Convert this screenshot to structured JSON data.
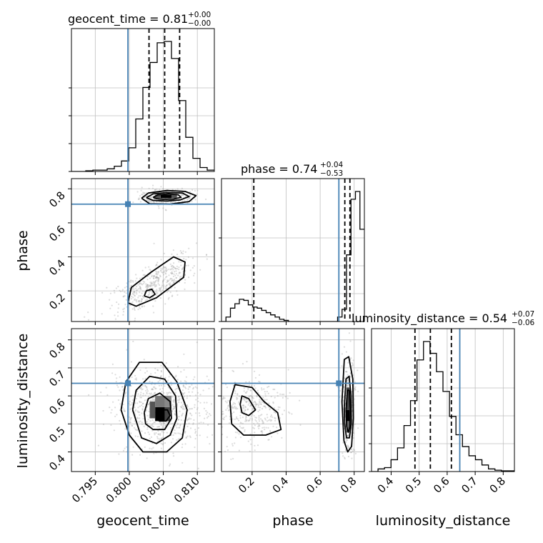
{
  "chart_data": {
    "type": "corner",
    "parameters": [
      "geocent_time",
      "phase",
      "luminosity_distance"
    ],
    "axis_labels": [
      "geocent_time",
      "phase",
      "luminosity_distance"
    ],
    "ranges": [
      [
        0.7915,
        0.8125
      ],
      [
        0.02,
        0.86
      ],
      [
        0.33,
        0.84
      ]
    ],
    "ticks": [
      {
        "values": [
          0.795,
          0.8,
          0.805,
          0.81
        ],
        "labels": [
          "0.795",
          "0.800",
          "0.805",
          "0.810"
        ]
      },
      {
        "values": [
          0.2,
          0.4,
          0.6,
          0.8
        ],
        "labels": [
          "0.2",
          "0.4",
          "0.6",
          "0.8"
        ]
      },
      {
        "values": [
          0.4,
          0.5,
          0.6,
          0.7,
          0.8
        ],
        "labels": [
          "0.4",
          "0.5",
          "0.6",
          "0.7",
          "0.8"
        ]
      }
    ],
    "truths": [
      0.7998,
      0.71,
      0.645
    ],
    "grid": true,
    "titles": [
      {
        "label": "geocent_time = 0.81",
        "plus": "+0.00",
        "minus": "−0.00"
      },
      {
        "label": "phase = 0.74",
        "plus": "+0.04",
        "minus": "−0.53"
      },
      {
        "label": "luminosity_distance = 0.54",
        "plus": "+0.07",
        "minus": "−0.06"
      }
    ],
    "quantiles": [
      [
        0.8029,
        0.8052,
        0.8074
      ],
      [
        0.21,
        0.745,
        0.775
      ],
      [
        0.485,
        0.54,
        0.615
      ]
    ],
    "histograms": [
      {
        "edges_range": [
          0.7915,
          0.8125
        ],
        "counts": [
          0,
          0,
          0.5,
          1,
          1,
          2,
          4,
          8,
          18,
          40,
          64,
          83,
          98,
          99,
          86,
          54,
          26,
          10,
          3,
          1
        ]
      },
      {
        "edges_range": [
          0.02,
          0.86
        ],
        "counts": [
          0,
          4,
          12,
          16,
          20,
          19,
          15,
          13,
          12,
          10,
          8,
          6,
          4,
          2,
          1,
          0,
          0,
          0,
          0,
          0,
          0,
          0,
          0,
          0,
          0,
          0,
          4,
          11,
          60,
          110,
          117,
          83
        ]
      },
      {
        "edges_range": [
          0.33,
          0.84
        ],
        "counts": [
          0,
          2,
          3,
          9,
          18,
          35,
          54,
          85,
          99,
          90,
          76,
          61,
          42,
          28,
          19,
          12,
          9,
          5,
          2,
          1,
          0.5,
          0.5
        ]
      }
    ],
    "contours": {
      "phase_vs_geocent_time": [
        [
          [
            0.8018,
            0.745
          ],
          [
            0.8028,
            0.775
          ],
          [
            0.8055,
            0.79
          ],
          [
            0.8082,
            0.785
          ],
          [
            0.8098,
            0.76
          ],
          [
            0.8088,
            0.725
          ],
          [
            0.806,
            0.71
          ],
          [
            0.803,
            0.712
          ],
          [
            0.8018,
            0.745
          ]
        ],
        [
          [
            0.8025,
            0.748
          ],
          [
            0.8035,
            0.77
          ],
          [
            0.8055,
            0.778
          ],
          [
            0.8078,
            0.775
          ],
          [
            0.8088,
            0.755
          ],
          [
            0.8075,
            0.735
          ],
          [
            0.8055,
            0.728
          ],
          [
            0.8035,
            0.732
          ],
          [
            0.8025,
            0.748
          ]
        ],
        [
          [
            0.8035,
            0.75
          ],
          [
            0.8042,
            0.765
          ],
          [
            0.8058,
            0.77
          ],
          [
            0.8072,
            0.765
          ],
          [
            0.8076,
            0.75
          ],
          [
            0.8065,
            0.74
          ],
          [
            0.805,
            0.738
          ],
          [
            0.804,
            0.742
          ],
          [
            0.8035,
            0.75
          ]
        ],
        [
          [
            0.7998,
            0.13
          ],
          [
            0.8003,
            0.22
          ],
          [
            0.8032,
            0.31
          ],
          [
            0.8065,
            0.4
          ],
          [
            0.8082,
            0.37
          ],
          [
            0.808,
            0.28
          ],
          [
            0.806,
            0.22
          ],
          [
            0.804,
            0.16
          ],
          [
            0.801,
            0.11
          ],
          [
            0.7998,
            0.13
          ]
        ],
        [
          [
            0.8022,
            0.17
          ],
          [
            0.8025,
            0.2
          ],
          [
            0.8033,
            0.21
          ],
          [
            0.8038,
            0.18
          ],
          [
            0.803,
            0.16
          ],
          [
            0.8022,
            0.17
          ]
        ]
      ],
      "luminosity_distance_vs_geocent_time": [
        [
          [
            0.7988,
            0.55
          ],
          [
            0.7995,
            0.65
          ],
          [
            0.8015,
            0.72
          ],
          [
            0.8048,
            0.72
          ],
          [
            0.807,
            0.65
          ],
          [
            0.8085,
            0.55
          ],
          [
            0.8078,
            0.45
          ],
          [
            0.8055,
            0.4
          ],
          [
            0.802,
            0.4
          ],
          [
            0.8,
            0.46
          ],
          [
            0.7988,
            0.55
          ]
        ],
        [
          [
            0.8005,
            0.55
          ],
          [
            0.801,
            0.62
          ],
          [
            0.803,
            0.67
          ],
          [
            0.8052,
            0.66
          ],
          [
            0.8068,
            0.6
          ],
          [
            0.807,
            0.52
          ],
          [
            0.806,
            0.46
          ],
          [
            0.804,
            0.43
          ],
          [
            0.8018,
            0.45
          ],
          [
            0.8005,
            0.55
          ]
        ],
        [
          [
            0.8022,
            0.54
          ],
          [
            0.8028,
            0.59
          ],
          [
            0.8045,
            0.61
          ],
          [
            0.806,
            0.58
          ],
          [
            0.8062,
            0.52
          ],
          [
            0.8052,
            0.48
          ],
          [
            0.8035,
            0.48
          ],
          [
            0.8024,
            0.5
          ],
          [
            0.8022,
            0.54
          ]
        ],
        [
          [
            0.804,
            0.53
          ],
          [
            0.8045,
            0.55
          ],
          [
            0.8056,
            0.55
          ],
          [
            0.806,
            0.53
          ],
          [
            0.8054,
            0.51
          ],
          [
            0.8044,
            0.51
          ],
          [
            0.804,
            0.53
          ]
        ]
      ],
      "luminosity_distance_vs_phase": [
        [
          [
            0.07,
            0.58
          ],
          [
            0.1,
            0.64
          ],
          [
            0.2,
            0.63
          ],
          [
            0.27,
            0.58
          ],
          [
            0.35,
            0.54
          ],
          [
            0.37,
            0.48
          ],
          [
            0.28,
            0.46
          ],
          [
            0.15,
            0.46
          ],
          [
            0.08,
            0.5
          ],
          [
            0.07,
            0.58
          ]
        ],
        [
          [
            0.13,
            0.57
          ],
          [
            0.14,
            0.6
          ],
          [
            0.18,
            0.59
          ],
          [
            0.22,
            0.55
          ],
          [
            0.18,
            0.53
          ],
          [
            0.14,
            0.54
          ],
          [
            0.13,
            0.57
          ]
        ],
        [
          [
            0.728,
            0.58
          ],
          [
            0.742,
            0.73
          ],
          [
            0.768,
            0.74
          ],
          [
            0.792,
            0.66
          ],
          [
            0.795,
            0.52
          ],
          [
            0.785,
            0.42
          ],
          [
            0.762,
            0.4
          ],
          [
            0.74,
            0.44
          ],
          [
            0.728,
            0.58
          ]
        ],
        [
          [
            0.742,
            0.56
          ],
          [
            0.752,
            0.66
          ],
          [
            0.77,
            0.67
          ],
          [
            0.782,
            0.6
          ],
          [
            0.783,
            0.5
          ],
          [
            0.772,
            0.45
          ],
          [
            0.755,
            0.45
          ],
          [
            0.744,
            0.5
          ],
          [
            0.742,
            0.56
          ]
        ],
        [
          [
            0.752,
            0.55
          ],
          [
            0.76,
            0.62
          ],
          [
            0.772,
            0.62
          ],
          [
            0.777,
            0.55
          ],
          [
            0.775,
            0.49
          ],
          [
            0.765,
            0.47
          ],
          [
            0.756,
            0.49
          ],
          [
            0.752,
            0.55
          ]
        ]
      ]
    },
    "density_blobs": {
      "phase_vs_geocent_time": [
        {
          "cx": 0.8052,
          "cy": 0.752,
          "sx": 0.0022,
          "sy": 0.025,
          "n": 260
        },
        {
          "cx": 0.8035,
          "cy": 0.24,
          "sx": 0.003,
          "sy": 0.085,
          "rho": 0.7,
          "n": 460
        }
      ],
      "luminosity_distance_vs_geocent_time": [
        {
          "cx": 0.8045,
          "cy": 0.55,
          "sx": 0.0035,
          "sy": 0.075,
          "n": 700
        }
      ],
      "luminosity_distance_vs_phase": [
        {
          "cx": 0.2,
          "cy": 0.55,
          "sx": 0.1,
          "sy": 0.06,
          "n": 360
        },
        {
          "cx": 0.765,
          "cy": 0.56,
          "sx": 0.018,
          "sy": 0.08,
          "n": 360
        }
      ]
    },
    "dark_cells": {
      "phase_vs_geocent_time": [
        {
          "x0": 0.8046,
          "x1": 0.8062,
          "y0": 0.745,
          "y1": 0.765,
          "shade": "#000000"
        },
        {
          "x0": 0.8038,
          "x1": 0.8046,
          "y0": 0.745,
          "y1": 0.765,
          "shade": "#555555"
        },
        {
          "x0": 0.8062,
          "x1": 0.807,
          "y0": 0.745,
          "y1": 0.765,
          "shade": "#555555"
        }
      ],
      "luminosity_distance_vs_geocent_time": [
        {
          "x0": 0.8038,
          "x1": 0.8052,
          "y0": 0.51,
          "y1": 0.56,
          "shade": "#000000"
        },
        {
          "x0": 0.8052,
          "x1": 0.806,
          "y0": 0.51,
          "y1": 0.56,
          "shade": "#444444"
        },
        {
          "x0": 0.803,
          "x1": 0.8038,
          "y0": 0.52,
          "y1": 0.58,
          "shade": "#555555"
        },
        {
          "x0": 0.8038,
          "x1": 0.8052,
          "y0": 0.56,
          "y1": 0.6,
          "shade": "#777777"
        },
        {
          "x0": 0.8052,
          "x1": 0.8062,
          "y0": 0.56,
          "y1": 0.6,
          "shade": "#888888"
        }
      ],
      "luminosity_distance_vs_phase": [
        {
          "x0": 0.755,
          "x1": 0.773,
          "y0": 0.51,
          "y1": 0.55,
          "shade": "#000000"
        },
        {
          "x0": 0.755,
          "x1": 0.773,
          "y0": 0.55,
          "y1": 0.63,
          "shade": "#444444"
        },
        {
          "x0": 0.755,
          "x1": 0.773,
          "y0": 0.47,
          "y1": 0.51,
          "shade": "#666666"
        }
      ]
    },
    "colors": {
      "truth": "#4682b4",
      "hist": "#000000",
      "grid": "#bfbfbf",
      "scatter": "#9a9a9a"
    }
  }
}
